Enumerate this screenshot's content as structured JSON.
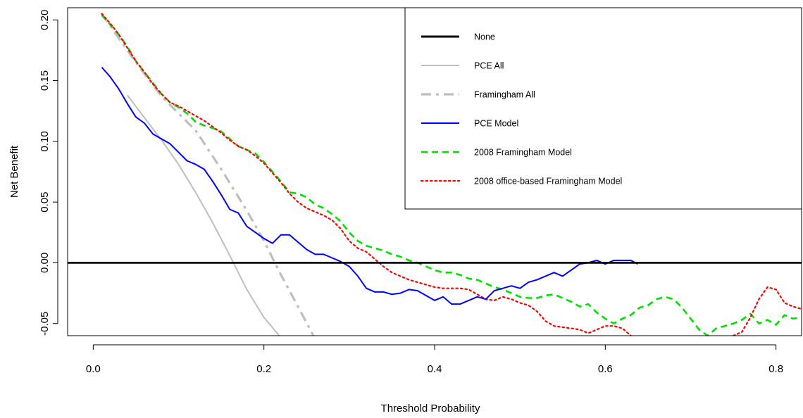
{
  "chart_data": {
    "type": "line",
    "title": "",
    "xlabel": "Threshold Probability",
    "ylabel": "Net Benefit",
    "xlim": [
      -0.03,
      0.83
    ],
    "ylim": [
      -0.06,
      0.21
    ],
    "x_ticks": [
      0.0,
      0.2,
      0.4,
      0.6,
      0.8
    ],
    "x_tick_labels": [
      "0.0",
      "0.2",
      "0.4",
      "0.6",
      "0.8"
    ],
    "y_ticks": [
      -0.05,
      0.0,
      0.05,
      0.1,
      0.15,
      0.2
    ],
    "y_tick_labels": [
      "-0.05",
      "0.00",
      "0.05",
      "0.10",
      "0.15",
      "0.20"
    ],
    "grid": false,
    "legend_position": "top-right",
    "series": [
      {
        "name": "None",
        "color": "#000000",
        "dash": "solid",
        "points": [
          [
            -0.03,
            0.0
          ],
          [
            0.83,
            0.0
          ]
        ]
      },
      {
        "name": "PCE All",
        "color": "#bebebe",
        "dash": "solid",
        "points": [
          [
            0.04,
            0.138
          ],
          [
            0.08,
            0.101
          ],
          [
            0.1,
            0.081
          ],
          [
            0.12,
            0.058
          ],
          [
            0.14,
            0.033
          ],
          [
            0.16,
            0.006
          ],
          [
            0.18,
            -0.022
          ],
          [
            0.2,
            -0.045
          ],
          [
            0.218,
            -0.06
          ]
        ]
      },
      {
        "name": "Framingham All",
        "color": "#bebebe",
        "dash": "dashdot",
        "points": [
          [
            0.01,
            0.205
          ],
          [
            0.05,
            0.165
          ],
          [
            0.08,
            0.137
          ],
          [
            0.12,
            0.109
          ],
          [
            0.15,
            0.077
          ],
          [
            0.18,
            0.043
          ],
          [
            0.2,
            0.018
          ],
          [
            0.22,
            -0.01
          ],
          [
            0.24,
            -0.036
          ],
          [
            0.258,
            -0.06
          ]
        ]
      },
      {
        "name": "PCE Model",
        "color": "#0000ff",
        "dash": "solid",
        "points": [
          [
            0.01,
            0.161
          ],
          [
            0.02,
            0.153
          ],
          [
            0.03,
            0.143
          ],
          [
            0.04,
            0.131
          ],
          [
            0.05,
            0.12
          ],
          [
            0.06,
            0.115
          ],
          [
            0.07,
            0.106
          ],
          [
            0.08,
            0.102
          ],
          [
            0.09,
            0.098
          ],
          [
            0.1,
            0.091
          ],
          [
            0.11,
            0.084
          ],
          [
            0.12,
            0.081
          ],
          [
            0.13,
            0.077
          ],
          [
            0.14,
            0.067
          ],
          [
            0.15,
            0.056
          ],
          [
            0.16,
            0.044
          ],
          [
            0.17,
            0.041
          ],
          [
            0.18,
            0.03
          ],
          [
            0.19,
            0.025
          ],
          [
            0.2,
            0.02
          ],
          [
            0.21,
            0.016
          ],
          [
            0.22,
            0.023
          ],
          [
            0.23,
            0.023
          ],
          [
            0.24,
            0.017
          ],
          [
            0.25,
            0.011
          ],
          [
            0.26,
            0.007
          ],
          [
            0.27,
            0.007
          ],
          [
            0.28,
            0.004
          ],
          [
            0.29,
            0.001
          ],
          [
            0.3,
            -0.003
          ],
          [
            0.31,
            -0.011
          ],
          [
            0.32,
            -0.021
          ],
          [
            0.33,
            -0.024
          ],
          [
            0.34,
            -0.024
          ],
          [
            0.35,
            -0.026
          ],
          [
            0.36,
            -0.025
          ],
          [
            0.37,
            -0.022
          ],
          [
            0.38,
            -0.023
          ],
          [
            0.39,
            -0.027
          ],
          [
            0.4,
            -0.031
          ],
          [
            0.41,
            -0.028
          ],
          [
            0.42,
            -0.034
          ],
          [
            0.43,
            -0.034
          ],
          [
            0.44,
            -0.031
          ],
          [
            0.45,
            -0.028
          ],
          [
            0.46,
            -0.03
          ],
          [
            0.47,
            -0.023
          ],
          [
            0.48,
            -0.021
          ],
          [
            0.49,
            -0.019
          ],
          [
            0.5,
            -0.021
          ],
          [
            0.51,
            -0.016
          ],
          [
            0.52,
            -0.014
          ],
          [
            0.53,
            -0.011
          ],
          [
            0.54,
            -0.008
          ],
          [
            0.55,
            -0.011
          ],
          [
            0.56,
            -0.006
          ],
          [
            0.57,
            -0.001
          ],
          [
            0.58,
            0.0
          ],
          [
            0.59,
            0.002
          ],
          [
            0.6,
            -0.001
          ],
          [
            0.61,
            0.002
          ],
          [
            0.62,
            0.002
          ],
          [
            0.63,
            0.002
          ],
          [
            0.638,
            -0.001
          ]
        ]
      },
      {
        "name": "2008 Framingham Model",
        "color": "#00e000",
        "dash": "dashed",
        "points": [
          [
            0.01,
            0.204
          ],
          [
            0.02,
            0.196
          ],
          [
            0.03,
            0.188
          ],
          [
            0.04,
            0.178
          ],
          [
            0.05,
            0.166
          ],
          [
            0.06,
            0.157
          ],
          [
            0.07,
            0.148
          ],
          [
            0.08,
            0.139
          ],
          [
            0.09,
            0.132
          ],
          [
            0.1,
            0.128
          ],
          [
            0.11,
            0.123
          ],
          [
            0.12,
            0.116
          ],
          [
            0.13,
            0.113
          ],
          [
            0.14,
            0.111
          ],
          [
            0.15,
            0.108
          ],
          [
            0.16,
            0.102
          ],
          [
            0.17,
            0.096
          ],
          [
            0.18,
            0.093
          ],
          [
            0.19,
            0.09
          ],
          [
            0.2,
            0.083
          ],
          [
            0.21,
            0.075
          ],
          [
            0.22,
            0.067
          ],
          [
            0.23,
            0.058
          ],
          [
            0.24,
            0.057
          ],
          [
            0.25,
            0.054
          ],
          [
            0.26,
            0.048
          ],
          [
            0.27,
            0.045
          ],
          [
            0.28,
            0.04
          ],
          [
            0.29,
            0.034
          ],
          [
            0.3,
            0.025
          ],
          [
            0.31,
            0.018
          ],
          [
            0.32,
            0.014
          ],
          [
            0.33,
            0.012
          ],
          [
            0.34,
            0.01
          ],
          [
            0.35,
            0.007
          ],
          [
            0.36,
            0.005
          ],
          [
            0.37,
            0.002
          ],
          [
            0.38,
            0.0
          ],
          [
            0.39,
            -0.003
          ],
          [
            0.4,
            -0.006
          ],
          [
            0.41,
            -0.008
          ],
          [
            0.42,
            -0.008
          ],
          [
            0.43,
            -0.01
          ],
          [
            0.44,
            -0.013
          ],
          [
            0.45,
            -0.014
          ],
          [
            0.46,
            -0.017
          ],
          [
            0.47,
            -0.02
          ],
          [
            0.48,
            -0.022
          ],
          [
            0.49,
            -0.025
          ],
          [
            0.5,
            -0.028
          ],
          [
            0.51,
            -0.029
          ],
          [
            0.52,
            -0.029
          ],
          [
            0.53,
            -0.027
          ],
          [
            0.54,
            -0.026
          ],
          [
            0.55,
            -0.029
          ],
          [
            0.56,
            -0.032
          ],
          [
            0.57,
            -0.036
          ],
          [
            0.58,
            -0.034
          ],
          [
            0.59,
            -0.041
          ],
          [
            0.6,
            -0.046
          ],
          [
            0.61,
            -0.05
          ],
          [
            0.62,
            -0.046
          ],
          [
            0.63,
            -0.043
          ],
          [
            0.64,
            -0.037
          ],
          [
            0.65,
            -0.035
          ],
          [
            0.66,
            -0.03
          ],
          [
            0.67,
            -0.028
          ],
          [
            0.68,
            -0.03
          ],
          [
            0.69,
            -0.037
          ],
          [
            0.7,
            -0.046
          ],
          [
            0.71,
            -0.055
          ],
          [
            0.72,
            -0.06
          ],
          [
            0.73,
            -0.054
          ],
          [
            0.74,
            -0.052
          ],
          [
            0.75,
            -0.05
          ],
          [
            0.76,
            -0.047
          ],
          [
            0.77,
            -0.042
          ],
          [
            0.78,
            -0.05
          ],
          [
            0.79,
            -0.047
          ],
          [
            0.8,
            -0.051
          ],
          [
            0.81,
            -0.043
          ],
          [
            0.82,
            -0.046
          ],
          [
            0.83,
            -0.045
          ]
        ]
      },
      {
        "name": "2008 office-based Framingham Model",
        "color": "#ff0000",
        "dash": "dotted",
        "points": [
          [
            0.01,
            0.205
          ],
          [
            0.02,
            0.197
          ],
          [
            0.03,
            0.188
          ],
          [
            0.04,
            0.177
          ],
          [
            0.05,
            0.166
          ],
          [
            0.06,
            0.157
          ],
          [
            0.07,
            0.147
          ],
          [
            0.08,
            0.139
          ],
          [
            0.09,
            0.132
          ],
          [
            0.1,
            0.129
          ],
          [
            0.11,
            0.125
          ],
          [
            0.12,
            0.121
          ],
          [
            0.13,
            0.117
          ],
          [
            0.14,
            0.112
          ],
          [
            0.15,
            0.107
          ],
          [
            0.16,
            0.101
          ],
          [
            0.17,
            0.096
          ],
          [
            0.18,
            0.093
          ],
          [
            0.19,
            0.088
          ],
          [
            0.2,
            0.082
          ],
          [
            0.21,
            0.074
          ],
          [
            0.22,
            0.066
          ],
          [
            0.23,
            0.057
          ],
          [
            0.24,
            0.05
          ],
          [
            0.25,
            0.045
          ],
          [
            0.26,
            0.042
          ],
          [
            0.27,
            0.039
          ],
          [
            0.28,
            0.035
          ],
          [
            0.29,
            0.028
          ],
          [
            0.3,
            0.018
          ],
          [
            0.31,
            0.012
          ],
          [
            0.32,
            0.009
          ],
          [
            0.33,
            0.003
          ],
          [
            0.34,
            -0.003
          ],
          [
            0.35,
            -0.008
          ],
          [
            0.36,
            -0.011
          ],
          [
            0.37,
            -0.014
          ],
          [
            0.38,
            -0.016
          ],
          [
            0.39,
            -0.018
          ],
          [
            0.4,
            -0.02
          ],
          [
            0.41,
            -0.021
          ],
          [
            0.42,
            -0.021
          ],
          [
            0.43,
            -0.021
          ],
          [
            0.44,
            -0.022
          ],
          [
            0.45,
            -0.026
          ],
          [
            0.46,
            -0.03
          ],
          [
            0.47,
            -0.031
          ],
          [
            0.48,
            -0.028
          ],
          [
            0.49,
            -0.03
          ],
          [
            0.5,
            -0.033
          ],
          [
            0.51,
            -0.035
          ],
          [
            0.52,
            -0.04
          ],
          [
            0.53,
            -0.048
          ],
          [
            0.54,
            -0.052
          ],
          [
            0.55,
            -0.053
          ],
          [
            0.56,
            -0.054
          ],
          [
            0.57,
            -0.055
          ],
          [
            0.58,
            -0.058
          ],
          [
            0.59,
            -0.055
          ],
          [
            0.6,
            -0.052
          ],
          [
            0.61,
            -0.052
          ],
          [
            0.62,
            -0.054
          ],
          [
            0.63,
            -0.06
          ]
        ],
        "points_right": [
          [
            0.75,
            -0.06
          ],
          [
            0.76,
            -0.057
          ],
          [
            0.77,
            -0.045
          ],
          [
            0.78,
            -0.03
          ],
          [
            0.79,
            -0.02
          ],
          [
            0.8,
            -0.022
          ],
          [
            0.81,
            -0.033
          ],
          [
            0.82,
            -0.036
          ],
          [
            0.83,
            -0.038
          ]
        ]
      }
    ]
  }
}
